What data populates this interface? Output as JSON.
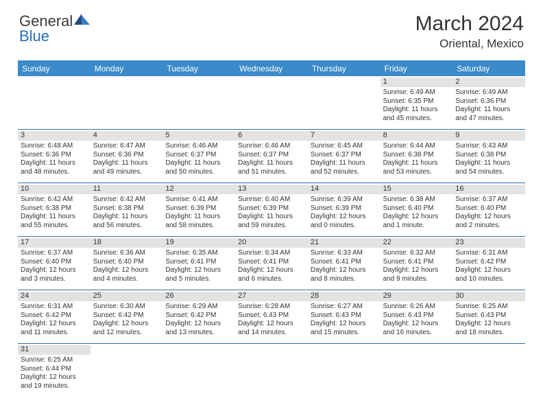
{
  "logo": {
    "word1": "General",
    "word2": "Blue"
  },
  "title": "March 2024",
  "location": "Oriental, Mexico",
  "colors": {
    "header_bg": "#3b8aca",
    "divider": "#2f6fa8",
    "daynum_bg": "#e3e3e3",
    "text": "#333333",
    "logo_gray": "#3a3a3a",
    "logo_blue": "#2971b8",
    "sail_dark": "#244b78",
    "sail_light": "#2f7fc7"
  },
  "weekdays": [
    "Sunday",
    "Monday",
    "Tuesday",
    "Wednesday",
    "Thursday",
    "Friday",
    "Saturday"
  ],
  "weeks": [
    [
      null,
      null,
      null,
      null,
      null,
      {
        "n": "1",
        "sr": "Sunrise: 6:49 AM",
        "ss": "Sunset: 6:35 PM",
        "d1": "Daylight: 11 hours",
        "d2": "and 45 minutes."
      },
      {
        "n": "2",
        "sr": "Sunrise: 6:49 AM",
        "ss": "Sunset: 6:36 PM",
        "d1": "Daylight: 11 hours",
        "d2": "and 47 minutes."
      }
    ],
    [
      {
        "n": "3",
        "sr": "Sunrise: 6:48 AM",
        "ss": "Sunset: 6:36 PM",
        "d1": "Daylight: 11 hours",
        "d2": "and 48 minutes."
      },
      {
        "n": "4",
        "sr": "Sunrise: 6:47 AM",
        "ss": "Sunset: 6:36 PM",
        "d1": "Daylight: 11 hours",
        "d2": "and 49 minutes."
      },
      {
        "n": "5",
        "sr": "Sunrise: 6:46 AM",
        "ss": "Sunset: 6:37 PM",
        "d1": "Daylight: 11 hours",
        "d2": "and 50 minutes."
      },
      {
        "n": "6",
        "sr": "Sunrise: 6:46 AM",
        "ss": "Sunset: 6:37 PM",
        "d1": "Daylight: 11 hours",
        "d2": "and 51 minutes."
      },
      {
        "n": "7",
        "sr": "Sunrise: 6:45 AM",
        "ss": "Sunset: 6:37 PM",
        "d1": "Daylight: 11 hours",
        "d2": "and 52 minutes."
      },
      {
        "n": "8",
        "sr": "Sunrise: 6:44 AM",
        "ss": "Sunset: 6:38 PM",
        "d1": "Daylight: 11 hours",
        "d2": "and 53 minutes."
      },
      {
        "n": "9",
        "sr": "Sunrise: 6:43 AM",
        "ss": "Sunset: 6:38 PM",
        "d1": "Daylight: 11 hours",
        "d2": "and 54 minutes."
      }
    ],
    [
      {
        "n": "10",
        "sr": "Sunrise: 6:42 AM",
        "ss": "Sunset: 6:38 PM",
        "d1": "Daylight: 11 hours",
        "d2": "and 55 minutes."
      },
      {
        "n": "11",
        "sr": "Sunrise: 6:42 AM",
        "ss": "Sunset: 6:38 PM",
        "d1": "Daylight: 11 hours",
        "d2": "and 56 minutes."
      },
      {
        "n": "12",
        "sr": "Sunrise: 6:41 AM",
        "ss": "Sunset: 6:39 PM",
        "d1": "Daylight: 11 hours",
        "d2": "and 58 minutes."
      },
      {
        "n": "13",
        "sr": "Sunrise: 6:40 AM",
        "ss": "Sunset: 6:39 PM",
        "d1": "Daylight: 11 hours",
        "d2": "and 59 minutes."
      },
      {
        "n": "14",
        "sr": "Sunrise: 6:39 AM",
        "ss": "Sunset: 6:39 PM",
        "d1": "Daylight: 12 hours",
        "d2": "and 0 minutes."
      },
      {
        "n": "15",
        "sr": "Sunrise: 6:38 AM",
        "ss": "Sunset: 6:40 PM",
        "d1": "Daylight: 12 hours",
        "d2": "and 1 minute."
      },
      {
        "n": "16",
        "sr": "Sunrise: 6:37 AM",
        "ss": "Sunset: 6:40 PM",
        "d1": "Daylight: 12 hours",
        "d2": "and 2 minutes."
      }
    ],
    [
      {
        "n": "17",
        "sr": "Sunrise: 6:37 AM",
        "ss": "Sunset: 6:40 PM",
        "d1": "Daylight: 12 hours",
        "d2": "and 3 minutes."
      },
      {
        "n": "18",
        "sr": "Sunrise: 6:36 AM",
        "ss": "Sunset: 6:40 PM",
        "d1": "Daylight: 12 hours",
        "d2": "and 4 minutes."
      },
      {
        "n": "19",
        "sr": "Sunrise: 6:35 AM",
        "ss": "Sunset: 6:41 PM",
        "d1": "Daylight: 12 hours",
        "d2": "and 5 minutes."
      },
      {
        "n": "20",
        "sr": "Sunrise: 6:34 AM",
        "ss": "Sunset: 6:41 PM",
        "d1": "Daylight: 12 hours",
        "d2": "and 6 minutes."
      },
      {
        "n": "21",
        "sr": "Sunrise: 6:33 AM",
        "ss": "Sunset: 6:41 PM",
        "d1": "Daylight: 12 hours",
        "d2": "and 8 minutes."
      },
      {
        "n": "22",
        "sr": "Sunrise: 6:32 AM",
        "ss": "Sunset: 6:41 PM",
        "d1": "Daylight: 12 hours",
        "d2": "and 9 minutes."
      },
      {
        "n": "23",
        "sr": "Sunrise: 6:31 AM",
        "ss": "Sunset: 6:42 PM",
        "d1": "Daylight: 12 hours",
        "d2": "and 10 minutes."
      }
    ],
    [
      {
        "n": "24",
        "sr": "Sunrise: 6:31 AM",
        "ss": "Sunset: 6:42 PM",
        "d1": "Daylight: 12 hours",
        "d2": "and 11 minutes."
      },
      {
        "n": "25",
        "sr": "Sunrise: 6:30 AM",
        "ss": "Sunset: 6:42 PM",
        "d1": "Daylight: 12 hours",
        "d2": "and 12 minutes."
      },
      {
        "n": "26",
        "sr": "Sunrise: 6:29 AM",
        "ss": "Sunset: 6:42 PM",
        "d1": "Daylight: 12 hours",
        "d2": "and 13 minutes."
      },
      {
        "n": "27",
        "sr": "Sunrise: 6:28 AM",
        "ss": "Sunset: 6:43 PM",
        "d1": "Daylight: 12 hours",
        "d2": "and 14 minutes."
      },
      {
        "n": "28",
        "sr": "Sunrise: 6:27 AM",
        "ss": "Sunset: 6:43 PM",
        "d1": "Daylight: 12 hours",
        "d2": "and 15 minutes."
      },
      {
        "n": "29",
        "sr": "Sunrise: 6:26 AM",
        "ss": "Sunset: 6:43 PM",
        "d1": "Daylight: 12 hours",
        "d2": "and 16 minutes."
      },
      {
        "n": "30",
        "sr": "Sunrise: 6:25 AM",
        "ss": "Sunset: 6:43 PM",
        "d1": "Daylight: 12 hours",
        "d2": "and 18 minutes."
      }
    ],
    [
      {
        "n": "31",
        "sr": "Sunrise: 6:25 AM",
        "ss": "Sunset: 6:44 PM",
        "d1": "Daylight: 12 hours",
        "d2": "and 19 minutes."
      },
      null,
      null,
      null,
      null,
      null,
      null
    ]
  ]
}
